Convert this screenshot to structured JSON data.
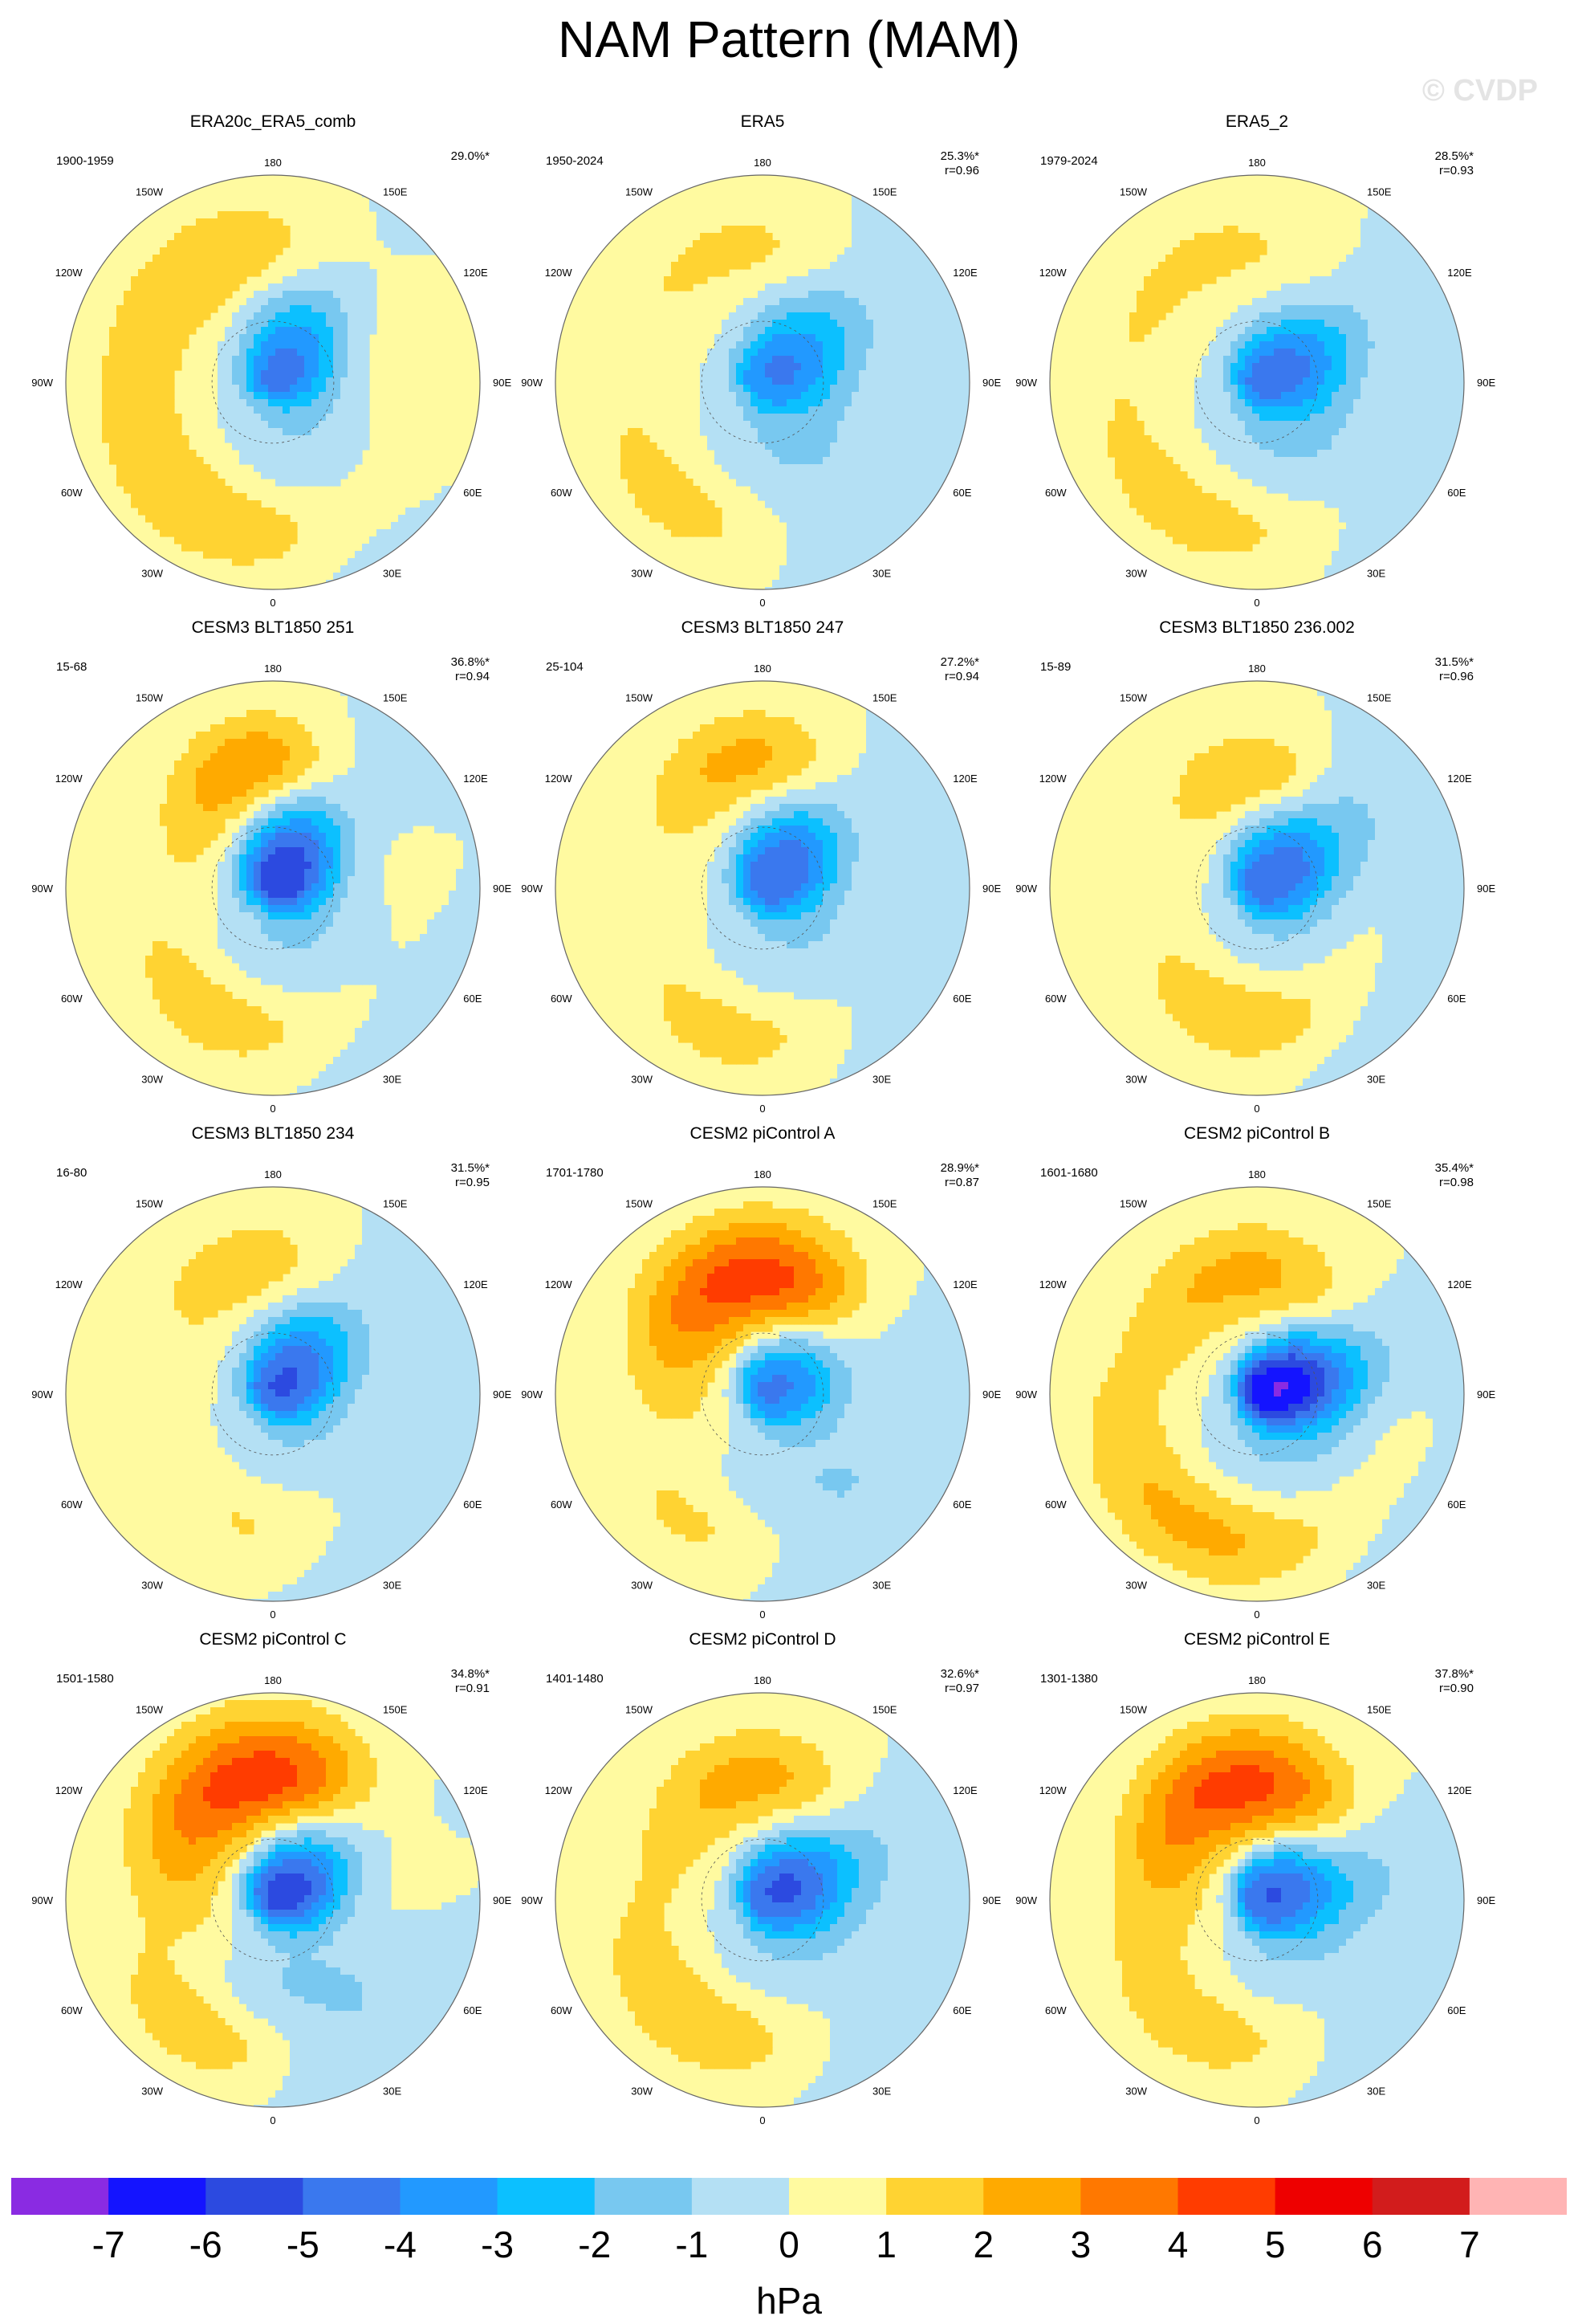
{
  "figure": {
    "title": "NAM Pattern (MAM)",
    "watermark": "© CVDP",
    "units": "hPa"
  },
  "colors": {
    "levels": [
      "#8a2be2",
      "#1414ff",
      "#2c4ae0",
      "#3a78ee",
      "#2299ff",
      "#0cc0ff",
      "#78c8f0",
      "#b4e0f4",
      "#fffaa0",
      "#ffd332",
      "#ffaa00",
      "#ff7800",
      "#ff3c00",
      "#ee0000",
      "#d21c1c",
      "#ffb4b4"
    ],
    "land": "#555555",
    "frame": "#666666"
  },
  "chart_data": {
    "type": "contour-map",
    "projection": "north polar stereographic",
    "colorbar": {
      "ticks": [
        "-7",
        "-6",
        "-5",
        "-4",
        "-3",
        "-2",
        "-1",
        "0",
        "1",
        "2",
        "3",
        "4",
        "5",
        "6",
        "7"
      ],
      "units": "hPa"
    },
    "lon_labels": [
      "180",
      "150E",
      "120E",
      "90E",
      "60E",
      "30E",
      "0",
      "30W",
      "60W",
      "90W",
      "120W",
      "150W"
    ],
    "panels": [
      {
        "title": "ERA20c_ERA5_comb",
        "period": "1900-1959",
        "pct": "29.0%*",
        "r": "",
        "blobs": [
          {
            "lon": 150,
            "lat": 82,
            "amp": -3.8,
            "sl": 14,
            "sr": 22
          },
          {
            "lon": 30,
            "lat": 60,
            "amp": -1.2,
            "sl": 18,
            "sr": 28
          },
          {
            "lon": -25,
            "lat": 42,
            "amp": 1.9,
            "sl": 50,
            "sr": 12
          },
          {
            "lon": -160,
            "lat": 45,
            "amp": 1.6,
            "sl": 30,
            "sr": 12
          }
        ]
      },
      {
        "title": "ERA5",
        "period": "1950-2024",
        "pct": "25.3%*",
        "r": "r=0.96",
        "blobs": [
          {
            "lon": 130,
            "lat": 80,
            "amp": -3.5,
            "sl": 14,
            "sr": 22
          },
          {
            "lon": 30,
            "lat": 60,
            "amp": -1.3,
            "sl": 20,
            "sr": 26
          },
          {
            "lon": -35,
            "lat": 42,
            "amp": 1.4,
            "sl": 30,
            "sr": 12
          },
          {
            "lon": -165,
            "lat": 45,
            "amp": 1.3,
            "sl": 25,
            "sr": 10
          }
        ]
      },
      {
        "title": "ERA5_2",
        "period": "1979-2024",
        "pct": "28.5%*",
        "r": "r=0.93",
        "blobs": [
          {
            "lon": 120,
            "lat": 82,
            "amp": -3.8,
            "sl": 14,
            "sr": 22
          },
          {
            "lon": 40,
            "lat": 60,
            "amp": -1.4,
            "sl": 20,
            "sr": 26
          },
          {
            "lon": -20,
            "lat": 42,
            "amp": 1.5,
            "sl": 45,
            "sr": 12
          },
          {
            "lon": -160,
            "lat": 45,
            "amp": 1.2,
            "sl": 25,
            "sr": 10
          }
        ]
      },
      {
        "title": "CESM3 BLT1850 251",
        "period": "15-68",
        "pct": "36.8%*",
        "r": "r=0.94",
        "blobs": [
          {
            "lon": 150,
            "lat": 80,
            "amp": -5.2,
            "sl": 14,
            "sr": 22
          },
          {
            "lon": 30,
            "lat": 62,
            "amp": -1.3,
            "sl": 22,
            "sr": 28
          },
          {
            "lon": -10,
            "lat": 45,
            "amp": 1.8,
            "sl": 35,
            "sr": 12
          },
          {
            "lon": -175,
            "lat": 50,
            "amp": 3.2,
            "sl": 22,
            "sr": 12
          }
        ]
      },
      {
        "title": "CESM3 BLT1850 247",
        "period": "25-104",
        "pct": "27.2%*",
        "r": "r=0.94",
        "blobs": [
          {
            "lon": 140,
            "lat": 80,
            "amp": -4.3,
            "sl": 14,
            "sr": 22
          },
          {
            "lon": 40,
            "lat": 60,
            "amp": -1.2,
            "sl": 22,
            "sr": 28
          },
          {
            "lon": -5,
            "lat": 42,
            "amp": 1.6,
            "sl": 30,
            "sr": 12
          },
          {
            "lon": -175,
            "lat": 48,
            "amp": 2.4,
            "sl": 25,
            "sr": 12
          }
        ]
      },
      {
        "title": "CESM3 BLT1850 236.002",
        "period": "15-89",
        "pct": "31.5%*",
        "r": "r=0.96",
        "blobs": [
          {
            "lon": 130,
            "lat": 80,
            "amp": -4.2,
            "sl": 14,
            "sr": 22
          },
          {
            "lon": 40,
            "lat": 58,
            "amp": -1.2,
            "sl": 22,
            "sr": 28
          },
          {
            "lon": 5,
            "lat": 48,
            "amp": 2.2,
            "sl": 30,
            "sr": 12
          },
          {
            "lon": -175,
            "lat": 52,
            "amp": 2.0,
            "sl": 20,
            "sr": 10
          }
        ]
      },
      {
        "title": "CESM3 BLT1850 234",
        "period": "16-80",
        "pct": "31.5%*",
        "r": "r=0.95",
        "blobs": [
          {
            "lon": 140,
            "lat": 82,
            "amp": -4.5,
            "sl": 14,
            "sr": 22
          },
          {
            "lon": 30,
            "lat": 60,
            "amp": -1.2,
            "sl": 22,
            "sr": 28
          },
          {
            "lon": 0,
            "lat": 48,
            "amp": 1.6,
            "sl": 22,
            "sr": 12
          },
          {
            "lon": -170,
            "lat": 48,
            "amp": 1.7,
            "sl": 25,
            "sr": 12
          }
        ]
      },
      {
        "title": "CESM2 piControl A",
        "period": "1701-1780",
        "pct": "28.9%*",
        "r": "r=0.87",
        "blobs": [
          {
            "lon": 120,
            "lat": 80,
            "amp": -3.8,
            "sl": 14,
            "sr": 22
          },
          {
            "lon": 40,
            "lat": 60,
            "amp": -1.2,
            "sl": 22,
            "sr": 28
          },
          {
            "lon": -30,
            "lat": 42,
            "amp": 1.2,
            "sl": 20,
            "sr": 10
          },
          {
            "lon": -175,
            "lat": 52,
            "amp": 4.6,
            "sl": 30,
            "sr": 14
          }
        ]
      },
      {
        "title": "CESM2 piControl B",
        "period": "1601-1680",
        "pct": "35.4%*",
        "r": "r=0.98",
        "blobs": [
          {
            "lon": 110,
            "lat": 82,
            "amp": -6.2,
            "sl": 13,
            "sr": 22
          },
          {
            "lon": 40,
            "lat": 60,
            "amp": -1.4,
            "sl": 22,
            "sr": 28
          },
          {
            "lon": -15,
            "lat": 42,
            "amp": 2.4,
            "sl": 45,
            "sr": 12
          },
          {
            "lon": -175,
            "lat": 50,
            "amp": 2.2,
            "sl": 25,
            "sr": 12
          }
        ]
      },
      {
        "title": "CESM2 piControl C",
        "period": "1501-1580",
        "pct": "34.8%*",
        "r": "r=0.91",
        "blobs": [
          {
            "lon": 130,
            "lat": 78,
            "amp": -5.2,
            "sl": 14,
            "sr": 22
          },
          {
            "lon": 30,
            "lat": 60,
            "amp": -1.4,
            "sl": 22,
            "sr": 28
          },
          {
            "lon": -30,
            "lat": 40,
            "amp": 1.8,
            "sl": 22,
            "sr": 10
          },
          {
            "lon": -175,
            "lat": 50,
            "amp": 4.7,
            "sl": 32,
            "sr": 15
          }
        ]
      },
      {
        "title": "CESM2 piControl D",
        "period": "1401-1480",
        "pct": "32.6%*",
        "r": "r=0.97",
        "blobs": [
          {
            "lon": 120,
            "lat": 80,
            "amp": -4.5,
            "sl": 14,
            "sr": 22
          },
          {
            "lon": 40,
            "lat": 60,
            "amp": -1.3,
            "sl": 22,
            "sr": 28
          },
          {
            "lon": -25,
            "lat": 45,
            "amp": 1.9,
            "sl": 35,
            "sr": 12
          },
          {
            "lon": -175,
            "lat": 50,
            "amp": 2.4,
            "sl": 25,
            "sr": 12
          }
        ]
      },
      {
        "title": "CESM2 piControl E",
        "period": "1301-1380",
        "pct": "37.8%*",
        "r": "r=0.90",
        "blobs": [
          {
            "lon": 110,
            "lat": 80,
            "amp": -4.6,
            "sl": 14,
            "sr": 22
          },
          {
            "lon": 40,
            "lat": 60,
            "amp": -1.3,
            "sl": 22,
            "sr": 28
          },
          {
            "lon": -20,
            "lat": 45,
            "amp": 1.7,
            "sl": 35,
            "sr": 12
          },
          {
            "lon": -170,
            "lat": 52,
            "amp": 4.4,
            "sl": 28,
            "sr": 14
          }
        ]
      }
    ]
  }
}
